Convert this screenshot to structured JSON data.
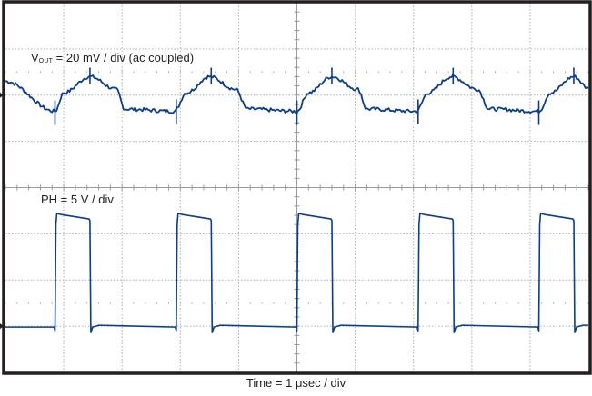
{
  "chart_data": {
    "type": "line",
    "title": "",
    "xlabel": "Time = 1 μsec / div",
    "ylabel": "",
    "grid": true,
    "grid_divisions": {
      "x": 10,
      "y": 8
    },
    "x_range_div": [
      0,
      10
    ],
    "legend": null,
    "annotations": [
      "V_OUT = 20 mV / div (ac coupled)",
      "PH = 5 V / div"
    ],
    "series": [
      {
        "name": "VOUT",
        "scale": "20 mV / div",
        "coupling": "ac",
        "color": "#0b3d91",
        "ground_marker_div_from_top": 2.0,
        "ripple_peak_to_peak_mV": 14,
        "period_div": 2.08,
        "description": "Triangular-ish output ripple with switching spikes at each PH edge",
        "x_div": [
          0.0,
          0.85,
          1.0,
          1.45,
          1.9,
          2.05,
          2.9,
          3.1,
          3.5,
          3.95,
          4.15,
          5.0,
          5.2,
          5.6,
          6.05,
          6.2,
          7.05,
          7.25,
          7.65,
          8.1,
          8.3,
          9.15,
          9.35,
          9.75,
          10.0
        ],
        "y_mV": [
          6.0,
          -7.0,
          1.0,
          8.0,
          2.5,
          -6.0,
          -7.0,
          1.0,
          8.0,
          2.5,
          -6.0,
          -7.0,
          1.0,
          8.0,
          2.5,
          -6.0,
          -7.0,
          1.0,
          8.0,
          2.5,
          -6.0,
          -7.0,
          1.0,
          8.0,
          3.0
        ]
      },
      {
        "name": "PH",
        "scale": "5 V / div",
        "color": "#0b3d91",
        "ground_marker_div_from_top": 7.0,
        "high_V": 12.0,
        "low_V": 0.0,
        "period_div": 2.08,
        "pulse_width_div": 0.6,
        "duty_cycle_pct": 29,
        "rising_edges_div": [
          0.85,
          2.93,
          5.0,
          7.08,
          9.15
        ],
        "falling_edges_div": [
          1.45,
          3.53,
          5.6,
          7.68,
          9.75
        ]
      }
    ]
  },
  "labels": {
    "ch1_prefix": "V",
    "ch1_sub": "OUT",
    "ch1_rest": " = 20 mV / div (ac coupled)",
    "ch2": "PH = 5 V / div",
    "x_axis": "Time = 1 μsec / div"
  },
  "colors": {
    "trace": "#0b3d91",
    "frame": "#231f20",
    "grid": "#b0b0b0",
    "background": "#ffffff"
  }
}
